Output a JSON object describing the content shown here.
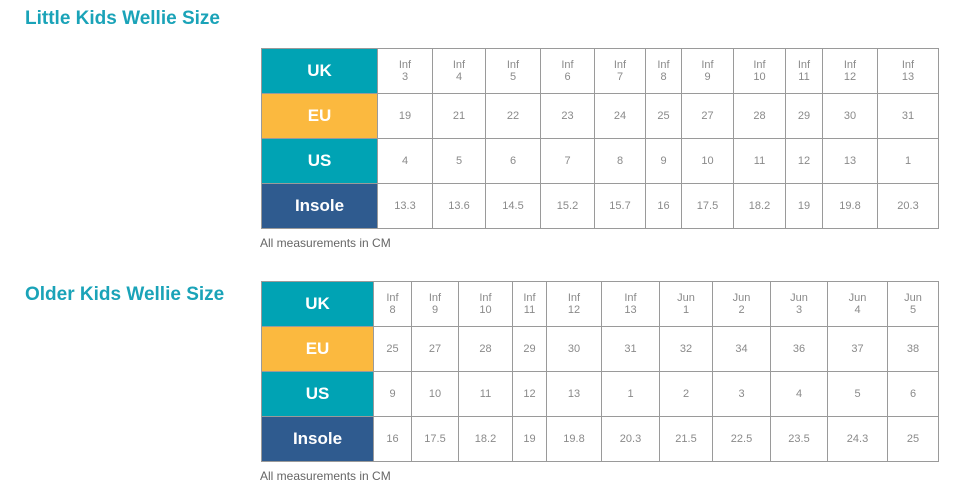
{
  "colors": {
    "title": "#1aa3b8",
    "uk": "#00a3b4",
    "eu": "#fbb93f",
    "us": "#00a3b4",
    "insole": "#2f5b8f"
  },
  "tables": [
    {
      "title": "Little Kids Wellie Size",
      "note": "All measurements in CM",
      "rows": [
        {
          "label": "UK",
          "cls": "uk",
          "values": [
            "Inf\n3",
            "Inf\n4",
            "Inf\n5",
            "Inf\n6",
            "Inf\n7",
            "Inf\n8",
            "Inf\n9",
            "Inf\n10",
            "Inf\n11",
            "Inf\n12",
            "Inf\n13"
          ]
        },
        {
          "label": "EU",
          "cls": "eu",
          "values": [
            "19",
            "21",
            "22",
            "23",
            "24",
            "25",
            "27",
            "28",
            "29",
            "30",
            "31"
          ]
        },
        {
          "label": "US",
          "cls": "us",
          "values": [
            "4",
            "5",
            "6",
            "7",
            "8",
            "9",
            "10",
            "11",
            "12",
            "13",
            "1"
          ]
        },
        {
          "label": "Insole",
          "cls": "insole",
          "values": [
            "13.3",
            "13.6",
            "14.5",
            "15.2",
            "15.7",
            "16",
            "17.5",
            "18.2",
            "19",
            "19.8",
            "20.3"
          ]
        }
      ]
    },
    {
      "title": "Older Kids Wellie Size",
      "note": "All measurements in CM",
      "rows": [
        {
          "label": "UK",
          "cls": "uk",
          "values": [
            "Inf\n8",
            "Inf\n9",
            "Inf\n10",
            "Inf\n11",
            "Inf\n12",
            "Inf\n13",
            "Jun\n1",
            "Jun\n2",
            "Jun\n3",
            "Jun\n4",
            "Jun\n5"
          ]
        },
        {
          "label": "EU",
          "cls": "eu",
          "values": [
            "25",
            "27",
            "28",
            "29",
            "30",
            "31",
            "32",
            "34",
            "36",
            "37",
            "38"
          ]
        },
        {
          "label": "US",
          "cls": "us",
          "values": [
            "9",
            "10",
            "11",
            "12",
            "13",
            "1",
            "2",
            "3",
            "4",
            "5",
            "6"
          ]
        },
        {
          "label": "Insole",
          "cls": "insole",
          "values": [
            "16",
            "17.5",
            "18.2",
            "19",
            "19.8",
            "20.3",
            "21.5",
            "22.5",
            "23.5",
            "24.3",
            "25"
          ]
        }
      ]
    }
  ]
}
